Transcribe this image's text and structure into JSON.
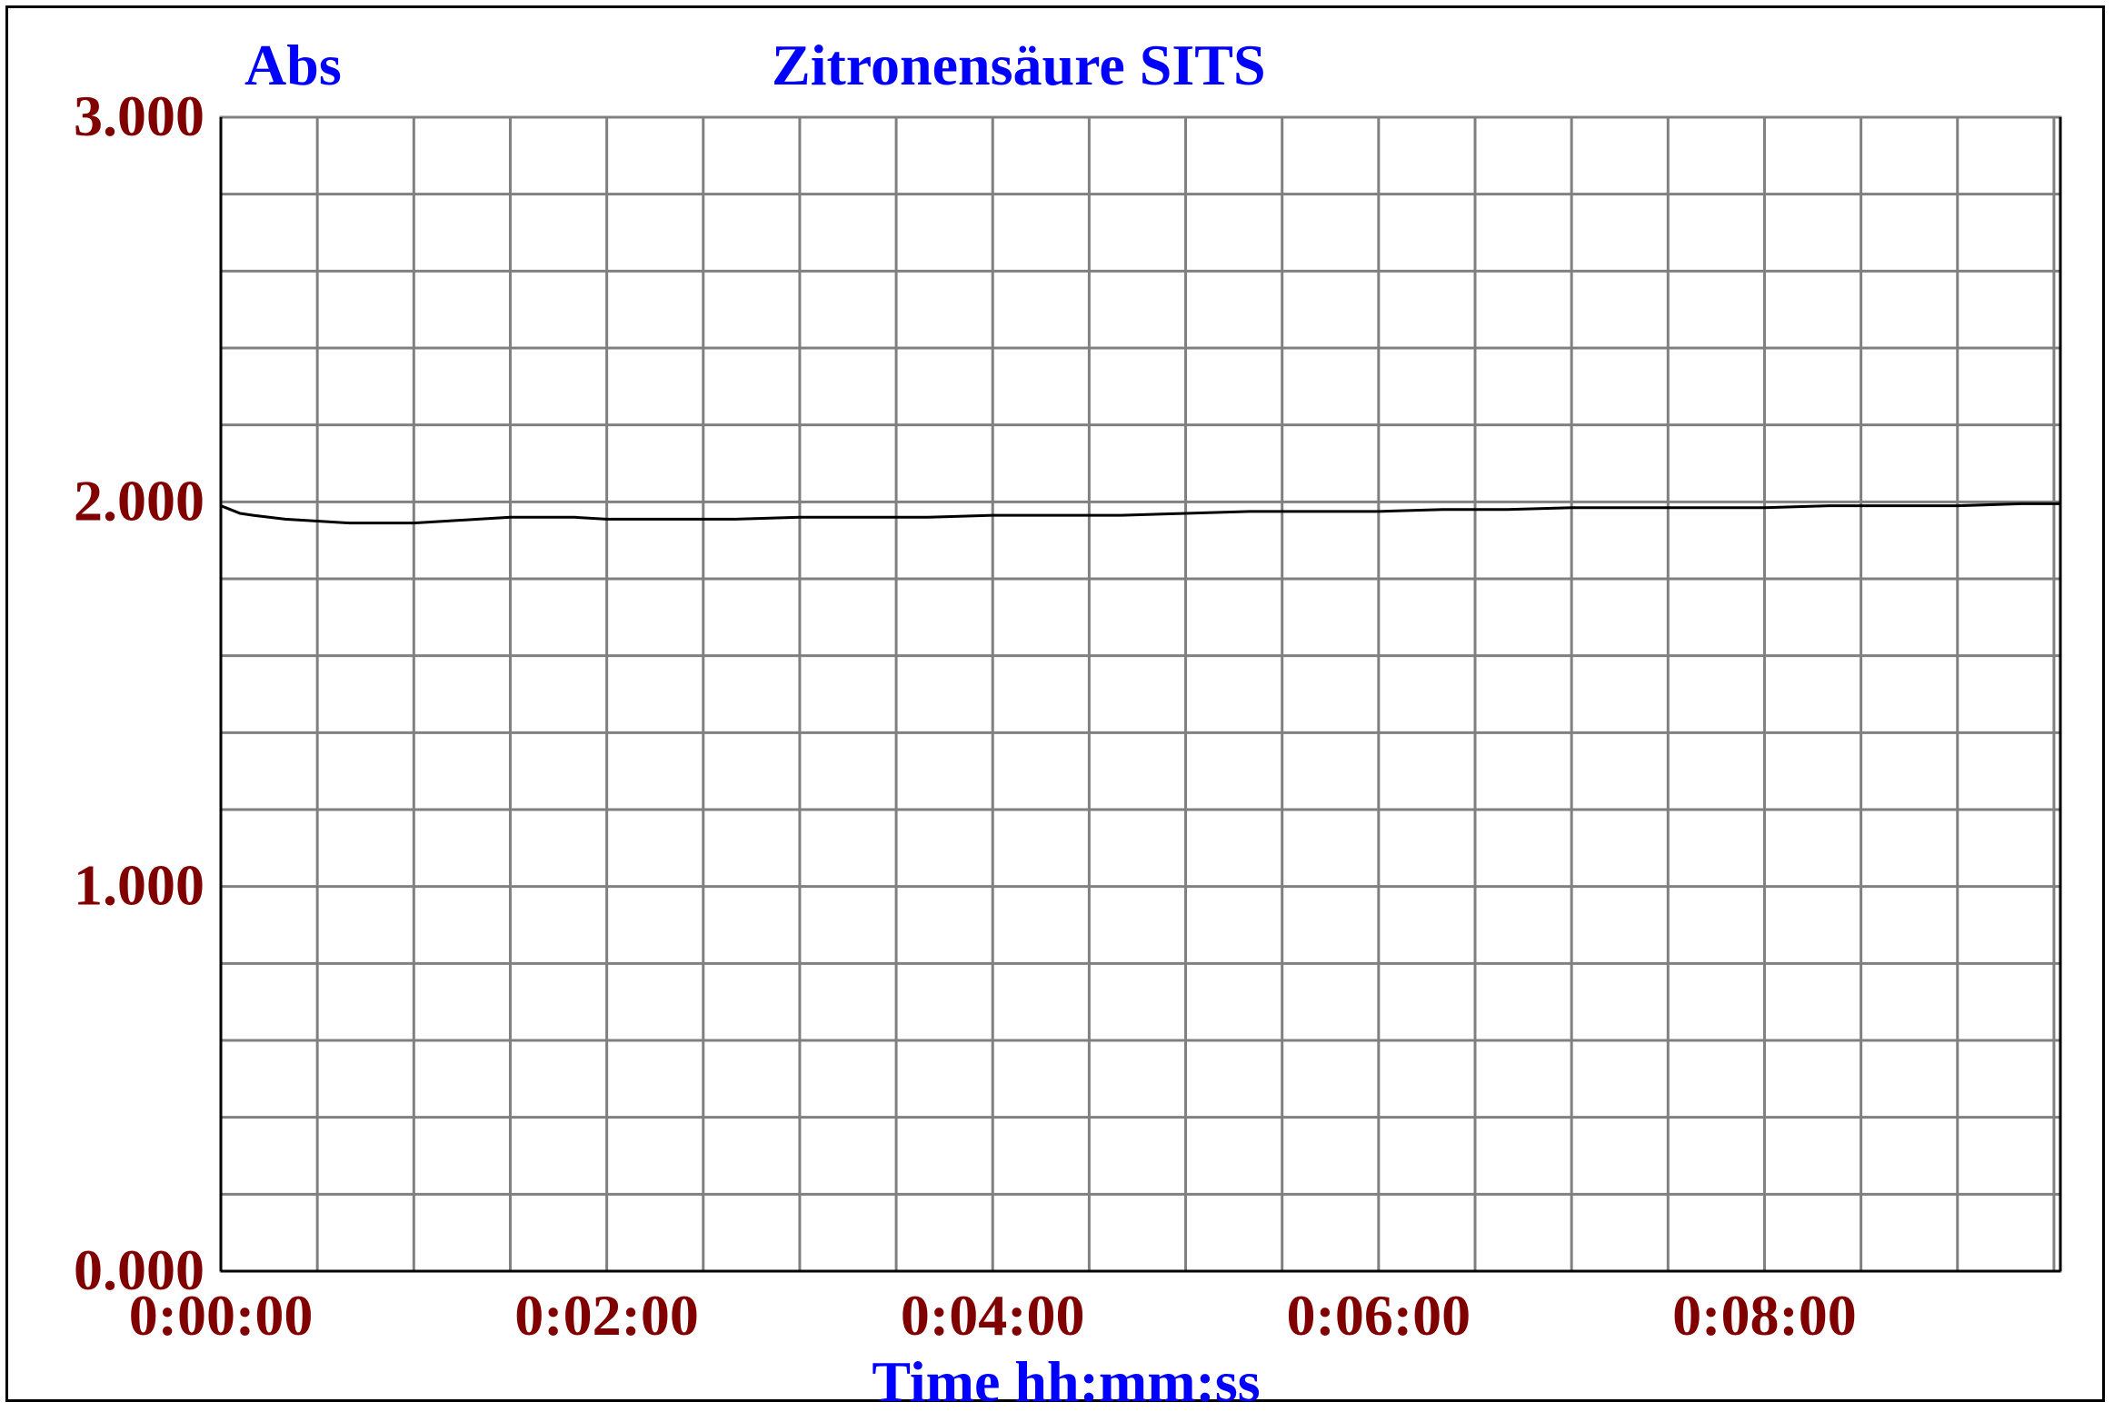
{
  "colors": {
    "background": "#ffffff",
    "title": "#0000ff",
    "tick_labels": "#800000",
    "grid": "#808080",
    "line": "#000000",
    "frame": "#000000"
  },
  "chart_data": {
    "type": "line",
    "title": "Zitronensäure SITS",
    "ylabel": "Abs",
    "xlabel": "Time hh:mm:ss",
    "xlim": [
      0,
      572
    ],
    "ylim": [
      0,
      3
    ],
    "grid": true,
    "y_ticks": [
      {
        "value": 0,
        "label": "0.000"
      },
      {
        "value": 1,
        "label": "1.000"
      },
      {
        "value": 2,
        "label": "2.000"
      },
      {
        "value": 3,
        "label": "3.000"
      }
    ],
    "x_ticks": [
      {
        "value": 0,
        "label": "0:00:00"
      },
      {
        "value": 120,
        "label": "0:02:00"
      },
      {
        "value": 240,
        "label": "0:04:00"
      },
      {
        "value": 360,
        "label": "0:06:00"
      },
      {
        "value": 480,
        "label": "0:08:00"
      }
    ],
    "series": [
      {
        "x": [
          0,
          3,
          6,
          10,
          15,
          20,
          30,
          40,
          50,
          60,
          70,
          80,
          90,
          100,
          110,
          120,
          140,
          160,
          180,
          200,
          220,
          240,
          260,
          280,
          300,
          320,
          340,
          360,
          380,
          400,
          420,
          440,
          460,
          480,
          500,
          520,
          540,
          560,
          572
        ],
        "y": [
          1.99,
          1.98,
          1.97,
          1.965,
          1.96,
          1.955,
          1.95,
          1.945,
          1.945,
          1.945,
          1.95,
          1.955,
          1.96,
          1.96,
          1.96,
          1.955,
          1.955,
          1.955,
          1.96,
          1.96,
          1.96,
          1.965,
          1.965,
          1.965,
          1.97,
          1.975,
          1.975,
          1.975,
          1.98,
          1.98,
          1.985,
          1.985,
          1.985,
          1.985,
          1.99,
          1.99,
          1.99,
          1.995,
          1.995
        ]
      }
    ]
  }
}
